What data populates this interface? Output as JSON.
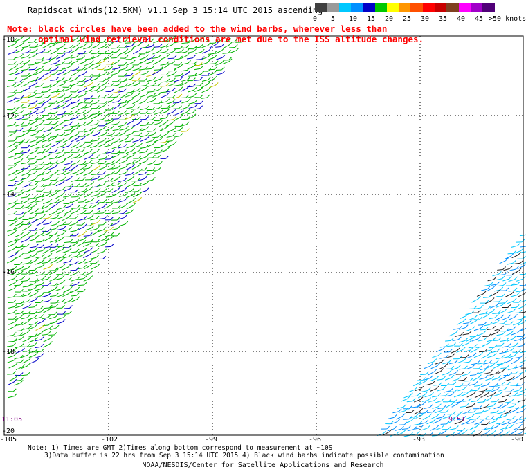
{
  "header": {
    "title": "Rapidscat Winds(12.5KM) v1.1 Sep  3 15:14 UTC 2015 ascending",
    "note_line1": "Note: black circles have been added to the wind barbs, wherever less than",
    "note_line2": "      optimal wind retrieval conditions are met due to the ISS altitude changes."
  },
  "color_bar": {
    "colors": [
      "#404040",
      "#9a9a9a",
      "#00c8ff",
      "#0090ff",
      "#0000c8",
      "#00c800",
      "#ffff00",
      "#ff9600",
      "#ff5000",
      "#ff0000",
      "#c80000",
      "#804020",
      "#ff00ff",
      "#a000c8",
      "#500078"
    ],
    "labels": [
      "0",
      "5",
      "10",
      "15",
      "20",
      "25",
      "30",
      "35",
      "40",
      "45"
    ],
    "unit_label": ">50 knots"
  },
  "axes": {
    "lat_labels": [
      "-10",
      "-12",
      "-14",
      "-16",
      "-18",
      "-20"
    ],
    "lon_labels": [
      "-105",
      "-102",
      "-99",
      "-96",
      "-93",
      "-90"
    ]
  },
  "time_marks": [
    "11:05",
    "9:51"
  ],
  "footer": {
    "line1": "Note: 1) Times are GMT 2)Times along bottom correspond to measurement at ~10S",
    "line2": "3)Data buffer is 22 hrs from Sep  3 15:14 UTC 2015 4) Black wind barbs indicate possible contamination",
    "credit": "NOAA/NESDIS/Center for Satellite Applications and Research"
  }
}
